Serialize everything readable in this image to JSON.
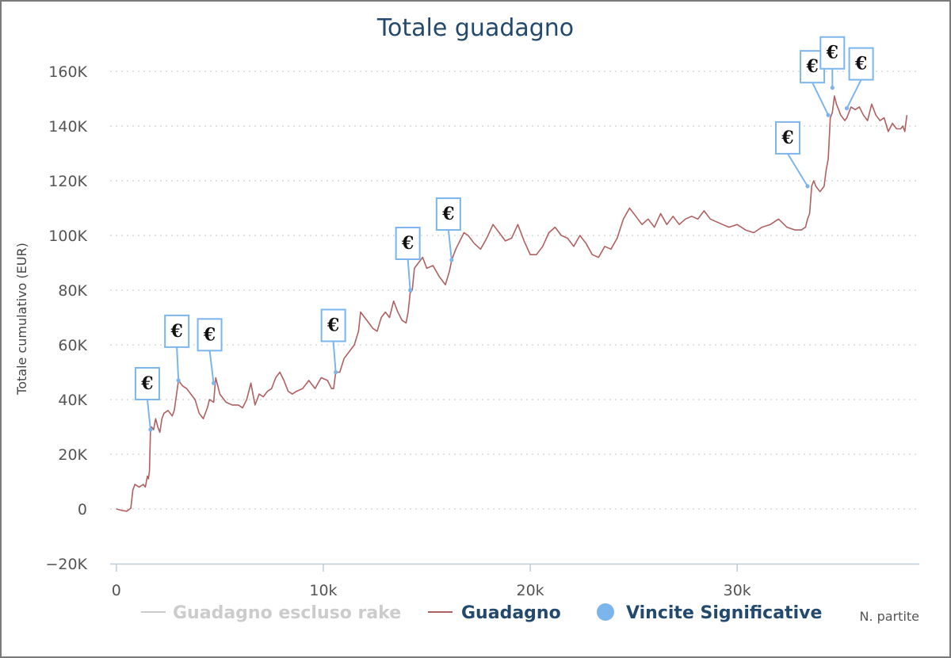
{
  "chart_data": {
    "type": "line",
    "title": "Totale guadagno",
    "ylabel": "Totale cumulativo (EUR)",
    "xlabel": "N. partite",
    "xlim": [
      -300,
      38800
    ],
    "ylim": [
      -20000,
      160000
    ],
    "x_ticks": [
      0,
      10000,
      20000,
      30000
    ],
    "x_tick_labels": [
      "0",
      "10k",
      "20k",
      "30k"
    ],
    "y_ticks": [
      -20000,
      0,
      20000,
      40000,
      60000,
      80000,
      100000,
      120000,
      140000,
      160000
    ],
    "y_tick_labels": [
      "−20K",
      "0",
      "20K",
      "40K",
      "60K",
      "80K",
      "100K",
      "120K",
      "140K",
      "160K"
    ],
    "grid": "horizontal dotted",
    "legend_position": "bottom",
    "colors": {
      "guadagno": "#b06060",
      "escluso_rake": "#cccccc",
      "vincite": "#7cb5ec",
      "title": "#234a6e",
      "legend_active": "#234a6e",
      "legend_inactive": "#cccccc"
    },
    "series": [
      {
        "name": "Guadagno escluso rake",
        "visible": false,
        "x": [],
        "y": []
      },
      {
        "name": "Guadagno",
        "visible": true,
        "x": [
          0,
          300,
          500,
          700,
          800,
          900,
          1100,
          1300,
          1400,
          1500,
          1550,
          1600,
          1650,
          1700,
          1800,
          1900,
          2000,
          2100,
          2200,
          2300,
          2500,
          2700,
          2800,
          3000,
          3200,
          3400,
          3600,
          3800,
          4000,
          4200,
          4400,
          4500,
          4700,
          4800,
          5000,
          5300,
          5600,
          5900,
          6100,
          6300,
          6500,
          6700,
          6900,
          7100,
          7300,
          7500,
          7700,
          7900,
          8100,
          8300,
          8500,
          8700,
          9000,
          9300,
          9600,
          9900,
          10200,
          10400,
          10500,
          10600,
          10800,
          11000,
          11200,
          11500,
          11700,
          11800,
          12000,
          12200,
          12400,
          12600,
          12800,
          13000,
          13200,
          13400,
          13600,
          13800,
          14000,
          14100,
          14200,
          14300,
          14400,
          14600,
          14800,
          15000,
          15300,
          15600,
          15900,
          16100,
          16200,
          16400,
          16600,
          16800,
          17000,
          17300,
          17600,
          17900,
          18200,
          18500,
          18800,
          19100,
          19400,
          19700,
          20000,
          20300,
          20600,
          20900,
          21200,
          21500,
          21800,
          22100,
          22400,
          22700,
          23000,
          23300,
          23600,
          23900,
          24200,
          24500,
          24800,
          25100,
          25400,
          25700,
          26000,
          26300,
          26600,
          26900,
          27200,
          27500,
          27800,
          28100,
          28400,
          28700,
          29000,
          29300,
          29600,
          30000,
          30400,
          30800,
          31200,
          31600,
          32000,
          32400,
          32800,
          33100,
          33300,
          33400,
          33500,
          33600,
          33700,
          33800,
          34000,
          34200,
          34300,
          34400,
          34500,
          34600,
          34700,
          34800,
          34900,
          35000,
          35200,
          35300,
          35500,
          35700,
          35900,
          36100,
          36300,
          36500,
          36700,
          36900,
          37100,
          37300,
          37500,
          37700,
          37900,
          38000,
          38100,
          38200
        ],
        "y": [
          0,
          -600,
          -800,
          300,
          7000,
          9000,
          8000,
          9000,
          8000,
          12000,
          11000,
          14000,
          29000,
          30000,
          29000,
          33000,
          30000,
          28000,
          33000,
          35000,
          36000,
          34000,
          36000,
          47000,
          45000,
          44000,
          42000,
          40000,
          35000,
          33000,
          37000,
          40000,
          39000,
          48000,
          42000,
          39000,
          38000,
          38000,
          37000,
          40000,
          46000,
          38000,
          42000,
          41000,
          43000,
          44000,
          48000,
          50000,
          47000,
          43000,
          42000,
          43000,
          44000,
          47000,
          44000,
          48000,
          47000,
          44000,
          44000,
          50000,
          50000,
          55000,
          57000,
          60000,
          65000,
          72000,
          70000,
          68000,
          66000,
          65000,
          70000,
          72000,
          70000,
          76000,
          72000,
          69000,
          68000,
          72000,
          79000,
          80000,
          88000,
          90000,
          92000,
          88000,
          89000,
          85000,
          82000,
          87000,
          91000,
          95000,
          98000,
          101000,
          100000,
          97000,
          95000,
          99000,
          104000,
          101000,
          98000,
          99000,
          104000,
          98000,
          93000,
          93000,
          96000,
          101000,
          103000,
          100000,
          99000,
          96000,
          100000,
          97000,
          93000,
          92000,
          96000,
          95000,
          99000,
          106000,
          110000,
          107000,
          104000,
          106000,
          103000,
          108000,
          104000,
          107000,
          104000,
          106000,
          107000,
          106000,
          109000,
          106000,
          105000,
          104000,
          103000,
          104000,
          102000,
          101000,
          103000,
          104000,
          106000,
          103000,
          102000,
          102000,
          103000,
          106000,
          108000,
          118000,
          120000,
          118000,
          116000,
          118000,
          124000,
          128000,
          143000,
          145000,
          151000,
          148000,
          146000,
          144000,
          142000,
          143000,
          147000,
          146000,
          147000,
          144000,
          142000,
          148000,
          144000,
          142000,
          143000,
          138000,
          141000,
          139000,
          139000,
          140000,
          138000,
          144000
        ]
      },
      {
        "name": "Vincite Significative",
        "type": "flags",
        "marker": "€",
        "points": [
          {
            "x": 1650,
            "y": 29000
          },
          {
            "x": 3000,
            "y": 47000
          },
          {
            "x": 4700,
            "y": 46000
          },
          {
            "x": 10600,
            "y": 50000
          },
          {
            "x": 14200,
            "y": 80000
          },
          {
            "x": 16200,
            "y": 91000
          },
          {
            "x": 33400,
            "y": 118000
          },
          {
            "x": 34400,
            "y": 144000
          },
          {
            "x": 34600,
            "y": 154000
          },
          {
            "x": 35300,
            "y": 146500
          }
        ]
      }
    ]
  }
}
